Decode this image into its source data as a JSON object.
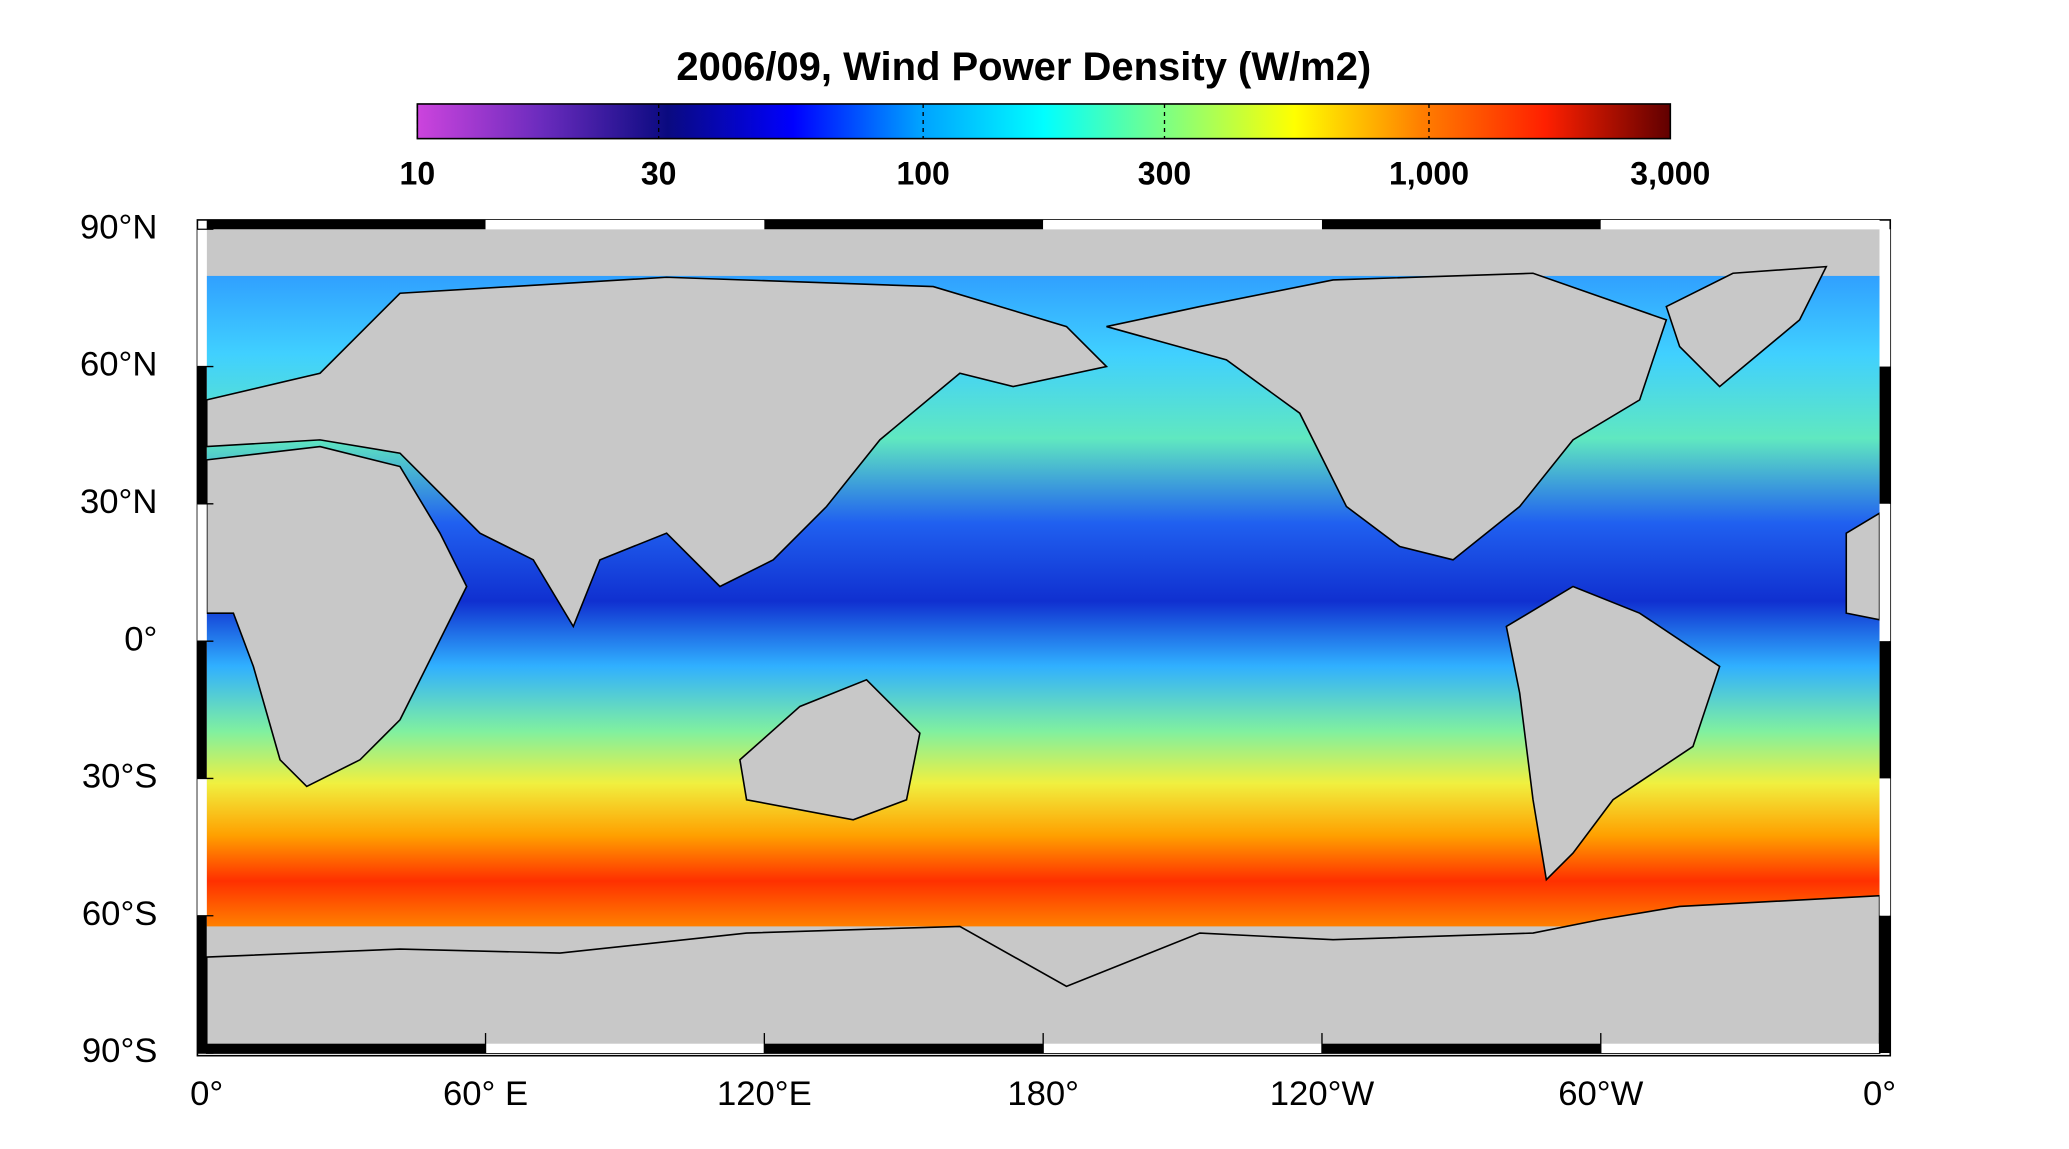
{
  "title": "2006/09, Wind Power Density (W/m2)",
  "colorbar": {
    "scale": "log",
    "lim": [
      10,
      3000
    ],
    "colors": [
      "#cc44dd",
      "#6a2bbd",
      "#0a0a80",
      "#0000ff",
      "#00a0ff",
      "#00ffff",
      "#80ff80",
      "#ffff00",
      "#ff8000",
      "#ff2000",
      "#600000"
    ],
    "ticks": [
      {
        "value": 10,
        "label": "10"
      },
      {
        "value": 30,
        "label": "30"
      },
      {
        "value": 100,
        "label": "100"
      },
      {
        "value": 300,
        "label": "300"
      },
      {
        "value": 1000,
        "label": "1,000"
      },
      {
        "value": 3000,
        "label": "3,000"
      }
    ]
  },
  "map": {
    "lonlim": [
      0,
      360
    ],
    "latlim": [
      -90,
      90
    ],
    "lon_ticks": [
      {
        "value": 0,
        "label": "0°"
      },
      {
        "value": 60,
        "label": "60° E"
      },
      {
        "value": 120,
        "label": "120°E"
      },
      {
        "value": 180,
        "label": "180°"
      },
      {
        "value": 240,
        "label": "120°W"
      },
      {
        "value": 300,
        "label": "60°W"
      },
      {
        "value": 360,
        "label": "0°"
      }
    ],
    "lat_ticks": [
      {
        "value": 90,
        "label": "90°N"
      },
      {
        "value": 60,
        "label": "60°N"
      },
      {
        "value": 30,
        "label": "30°N"
      },
      {
        "value": 0,
        "label": "0°"
      },
      {
        "value": -30,
        "label": "30°S"
      },
      {
        "value": -60,
        "label": "60°S"
      },
      {
        "value": -90,
        "label": "90°S"
      }
    ]
  }
}
